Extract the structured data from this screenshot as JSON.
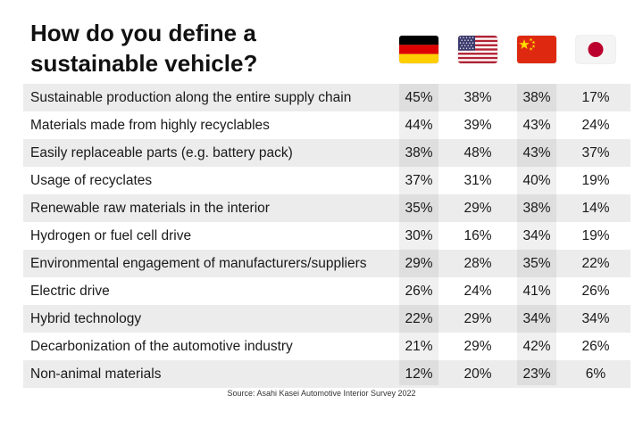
{
  "title": "How do you define a sustainable vehicle?",
  "source": "Source: Asahi Kasei Automotive Interior Survey 2022",
  "chart_data": {
    "type": "table",
    "columns": [
      {
        "flag": "germany-flag-icon"
      },
      {
        "flag": "usa-flag-icon"
      },
      {
        "flag": "china-flag-icon"
      },
      {
        "flag": "japan-flag-icon"
      }
    ],
    "rows": [
      {
        "label": "Sustainable production along the entire supply chain",
        "values": [
          "45%",
          "38%",
          "38%",
          "17%"
        ]
      },
      {
        "label": "Materials made from highly recyclables",
        "values": [
          "44%",
          "39%",
          "43%",
          "24%"
        ]
      },
      {
        "label": "Easily replaceable parts (e.g. battery pack)",
        "values": [
          "38%",
          "48%",
          "43%",
          "37%"
        ]
      },
      {
        "label": "Usage of recyclates",
        "values": [
          "37%",
          "31%",
          "40%",
          "19%"
        ]
      },
      {
        "label": "Renewable raw materials in the interior",
        "values": [
          "35%",
          "29%",
          "38%",
          "14%"
        ]
      },
      {
        "label": "Hydrogen or fuel cell drive",
        "values": [
          "30%",
          "16%",
          "34%",
          "19%"
        ]
      },
      {
        "label": "Environmental engagement of manufacturers/suppliers",
        "values": [
          "29%",
          "28%",
          "35%",
          "22%"
        ]
      },
      {
        "label": "Electric drive",
        "values": [
          "26%",
          "24%",
          "41%",
          "26%"
        ]
      },
      {
        "label": "Hybrid technology",
        "values": [
          "22%",
          "29%",
          "34%",
          "34%"
        ]
      },
      {
        "label": "Decarbonization of the automotive industry",
        "values": [
          "21%",
          "29%",
          "42%",
          "26%"
        ]
      },
      {
        "label": "Non-animal materials",
        "values": [
          "12%",
          "20%",
          "23%",
          "6%"
        ]
      }
    ]
  }
}
